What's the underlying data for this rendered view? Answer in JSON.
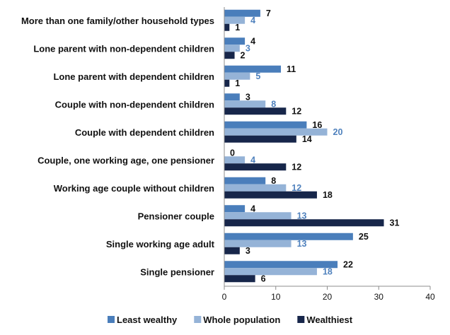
{
  "chart_data": {
    "type": "bar",
    "orientation": "horizontal",
    "categories": [
      "More than one family/other household types",
      "Lone parent with non-dependent children",
      "Lone parent with dependent children",
      "Couple with non-dependent children",
      "Couple with dependent children",
      "Couple, one working age, one pensioner",
      "Working age couple without children",
      "Pensioner couple",
      "Single working age adult",
      "Single pensioner"
    ],
    "series": [
      {
        "name": "Least wealthy",
        "color": "#4a7ebb",
        "label_color": "#111111",
        "values": [
          7,
          4,
          11,
          3,
          16,
          0,
          8,
          4,
          25,
          22
        ]
      },
      {
        "name": "Whole population",
        "color": "#95b3d7",
        "label_color": "#4f81bd",
        "values": [
          4,
          3,
          5,
          8,
          20,
          4,
          12,
          13,
          13,
          18
        ]
      },
      {
        "name": "Wealthiest",
        "color": "#17264a",
        "label_color": "#111111",
        "values": [
          1,
          2,
          1,
          12,
          14,
          12,
          18,
          31,
          3,
          6
        ]
      }
    ],
    "xlim": [
      0,
      40
    ],
    "xticks": [
      0,
      10,
      20,
      30,
      40
    ],
    "grid": false,
    "legend_position": "bottom"
  }
}
